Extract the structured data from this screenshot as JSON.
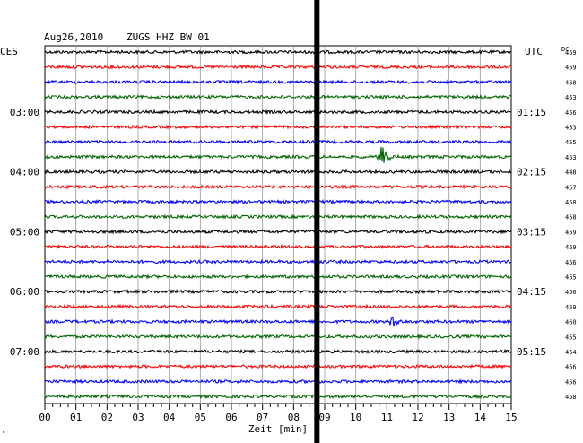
{
  "header": {
    "date": "Aug26,2010",
    "station": "ZUGS HHZ BW 01",
    "left_timezone": "CES",
    "right_timezone": "UTC",
    "right_column_header": "DC"
  },
  "footer": {
    "xlabel": "Zeit [min]",
    "corner_mark": "\""
  },
  "chart_data": {
    "type": "line",
    "title": "Aug26,2010 ZUGS HHZ BW 01",
    "xlabel": "Zeit [min]",
    "xlim": [
      0,
      15
    ],
    "x_ticks": [
      "00",
      "01",
      "02",
      "03",
      "04",
      "05",
      "06",
      "07",
      "08",
      "09",
      "10",
      "11",
      "12",
      "13",
      "14",
      "15"
    ],
    "trace_colors": [
      "#000000",
      "#ff0000",
      "#0000ff",
      "#006400"
    ],
    "left_time_labels": [
      "03:00",
      "04:00",
      "05:00",
      "06:00",
      "07:00"
    ],
    "right_time_labels": [
      "01:15",
      "02:15",
      "03:15",
      "04:15",
      "05:15"
    ],
    "time_label_rows": [
      4,
      8,
      12,
      16,
      20
    ],
    "dc_values": [
      "459",
      "459",
      "458",
      "453",
      "456",
      "453",
      "455",
      "453",
      "448",
      "457",
      "458",
      "458",
      "459",
      "459",
      "456",
      "455",
      "456",
      "459",
      "460",
      "455",
      "454",
      "456",
      "456",
      "458"
    ],
    "highlight_minute": 8.75,
    "events": [
      {
        "trace": 7,
        "minute": 10.8,
        "amplitude": "large"
      },
      {
        "trace": 18,
        "minute": 11.2,
        "amplitude": "medium"
      }
    ]
  }
}
